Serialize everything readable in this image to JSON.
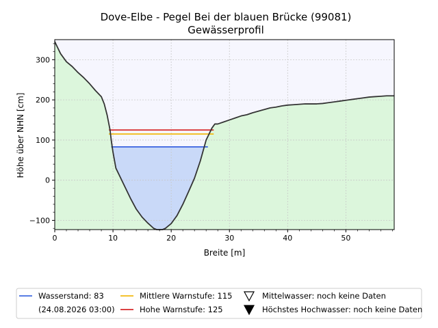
{
  "chart_data": {
    "type": "area",
    "title": "Dove-Elbe - Pegel Bei der blauen Brücke (99081)",
    "subtitle": "Gewässerprofil",
    "xlabel": "Breite [m]",
    "ylabel": "Höhe über NHN [cm]",
    "xlim": [
      0,
      58.3
    ],
    "ylim": [
      -123,
      350
    ],
    "xticks": [
      0,
      10,
      20,
      30,
      40,
      50
    ],
    "yticks": [
      -100,
      0,
      100,
      200,
      300
    ],
    "grid": true,
    "legend_position": "below plot",
    "profile": {
      "x": [
        0,
        0.5,
        1,
        2,
        3,
        4,
        5,
        6,
        7,
        8,
        8.5,
        9,
        9.5,
        9.7,
        10,
        10.5,
        11,
        12,
        13,
        14,
        15,
        16,
        17,
        17.5,
        18,
        18.5,
        19,
        20,
        21,
        22,
        23,
        24,
        25,
        26,
        27,
        27.5,
        28,
        29,
        30,
        31,
        32,
        33,
        34,
        35,
        36,
        37,
        38,
        39,
        40,
        41,
        42,
        43,
        44,
        45,
        46,
        47,
        48,
        49,
        50,
        51,
        52,
        53,
        54,
        55,
        56,
        57,
        58.3
      ],
      "y": [
        345,
        330,
        315,
        295,
        283,
        268,
        255,
        240,
        223,
        208,
        190,
        162,
        125,
        100,
        70,
        30,
        15,
        -15,
        -45,
        -72,
        -92,
        -107,
        -120,
        -123,
        -123,
        -123,
        -120,
        -108,
        -88,
        -60,
        -28,
        5,
        48,
        100,
        130,
        140,
        140,
        145,
        150,
        155,
        160,
        163,
        168,
        172,
        176,
        180,
        182,
        185,
        187,
        188,
        189,
        190,
        190,
        190,
        191,
        193,
        195,
        197,
        199,
        201,
        203,
        205,
        207,
        208,
        209,
        210,
        210
      ]
    },
    "levels": [
      {
        "name": "Wasserstand: 83",
        "value": 83,
        "color": "#4169e1",
        "x_range": [
          9.7,
          26.3
        ]
      },
      {
        "name": "Mittlere Warnstufe: 115",
        "value": 115,
        "color": "#f2b90f",
        "x_range": [
          9.3,
          27.3
        ]
      },
      {
        "name": "Hohe Warnstufe: 125",
        "value": 125,
        "color": "#d62728",
        "x_range": [
          9.3,
          27.3
        ]
      }
    ],
    "colors": {
      "ground": "#dcf6dc",
      "water": "#c9d9f8",
      "sky": "#f6f6fe",
      "profile_line": "#333333"
    }
  },
  "legend": {
    "water_label": "Wasserstand: 83",
    "water_date": "(24.08.2026 03:00)",
    "mid_label": "Mittlere Warnstufe: 115",
    "high_label": "Hohe Warnstufe: 125",
    "mean_label": "Mittelwasser: noch keine Daten",
    "max_label": "Höchstes Hochwasser: noch keine Daten",
    "mean_icon": "triangle-down-outline-icon",
    "max_icon": "triangle-down-filled-icon"
  }
}
